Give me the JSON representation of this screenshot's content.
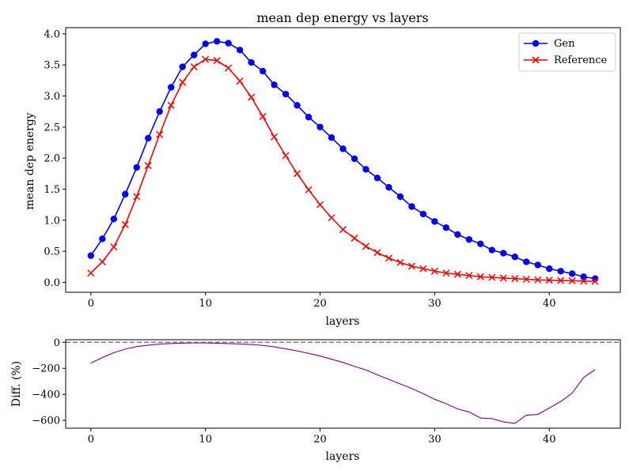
{
  "chart_data": [
    {
      "type": "line",
      "title": "mean dep energy vs layers",
      "xlabel": "layers",
      "ylabel": "mean dep energy",
      "xlim": [
        -2.2,
        46.2
      ],
      "ylim": [
        -0.16,
        4.1
      ],
      "xticks": [
        0,
        10,
        20,
        30,
        40
      ],
      "yticks": [
        0.0,
        0.5,
        1.0,
        1.5,
        2.0,
        2.5,
        3.0,
        3.5,
        4.0
      ],
      "ytick_labels": [
        "0.0",
        "0.5",
        "1.0",
        "1.5",
        "2.0",
        "2.5",
        "3.0",
        "3.5",
        "4.0"
      ],
      "legend_position": "top-right",
      "grid": false,
      "x": [
        0,
        1,
        2,
        3,
        4,
        5,
        6,
        7,
        8,
        9,
        10,
        11,
        12,
        13,
        14,
        15,
        16,
        17,
        18,
        19,
        20,
        21,
        22,
        23,
        24,
        25,
        26,
        27,
        28,
        29,
        30,
        31,
        32,
        33,
        34,
        35,
        36,
        37,
        38,
        39,
        40,
        41,
        42,
        43,
        44
      ],
      "series": [
        {
          "name": "Gen",
          "color": "#0000ff",
          "marker": "circle",
          "values": [
            0.43,
            0.7,
            1.02,
            1.42,
            1.85,
            2.32,
            2.75,
            3.14,
            3.47,
            3.66,
            3.84,
            3.88,
            3.85,
            3.74,
            3.54,
            3.4,
            3.18,
            3.03,
            2.85,
            2.66,
            2.5,
            2.33,
            2.15,
            1.99,
            1.82,
            1.68,
            1.53,
            1.38,
            1.22,
            1.1,
            0.98,
            0.88,
            0.77,
            0.69,
            0.62,
            0.52,
            0.47,
            0.41,
            0.33,
            0.28,
            0.22,
            0.18,
            0.14,
            0.09,
            0.06
          ]
        },
        {
          "name": "Reference",
          "color": "#ff0000",
          "marker": "x",
          "values": [
            0.15,
            0.33,
            0.57,
            0.93,
            1.38,
            1.88,
            2.38,
            2.85,
            3.22,
            3.47,
            3.59,
            3.57,
            3.45,
            3.24,
            2.98,
            2.67,
            2.34,
            2.04,
            1.75,
            1.49,
            1.25,
            1.04,
            0.85,
            0.71,
            0.58,
            0.48,
            0.39,
            0.32,
            0.26,
            0.22,
            0.18,
            0.15,
            0.13,
            0.11,
            0.09,
            0.08,
            0.07,
            0.06,
            0.05,
            0.04,
            0.035,
            0.03,
            0.025,
            0.02,
            0.015
          ]
        }
      ]
    },
    {
      "type": "line",
      "title": "",
      "xlabel": "layers",
      "ylabel": "Diff. (%)",
      "xlim": [
        -2.2,
        46.2
      ],
      "ylim": [
        -660,
        20
      ],
      "xticks": [
        0,
        10,
        20,
        30,
        40
      ],
      "yticks": [
        0,
        -200,
        -400,
        -600
      ],
      "ytick_labels": [
        "0",
        "−200",
        "−400",
        "−600"
      ],
      "reference_line": {
        "y": 0,
        "color": "#808080",
        "style": "dashed"
      },
      "grid": false,
      "x": [
        0,
        1,
        2,
        3,
        4,
        5,
        6,
        7,
        8,
        9,
        10,
        11,
        12,
        13,
        14,
        15,
        16,
        17,
        18,
        19,
        20,
        21,
        22,
        23,
        24,
        25,
        26,
        27,
        28,
        29,
        30,
        31,
        32,
        33,
        34,
        35,
        36,
        37,
        38,
        39,
        40,
        41,
        42,
        43,
        44
      ],
      "series": [
        {
          "color": "#800080",
          "values": [
            -160,
            -117,
            -80,
            -52,
            -33,
            -22,
            -14,
            -9,
            -6,
            -5,
            -5,
            -7,
            -10,
            -13,
            -17,
            -24,
            -35,
            -50,
            -66,
            -85,
            -105,
            -130,
            -155,
            -185,
            -212,
            -250,
            -285,
            -320,
            -355,
            -395,
            -438,
            -472,
            -512,
            -535,
            -582,
            -586,
            -612,
            -623,
            -560,
            -554,
            -505,
            -455,
            -390,
            -270,
            -210
          ]
        }
      ]
    }
  ]
}
